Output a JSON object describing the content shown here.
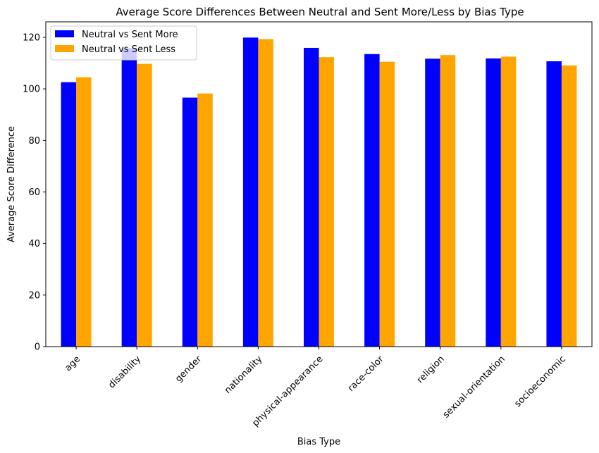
{
  "chart_data": {
    "type": "bar",
    "title": "Average Score Differences Between Neutral and Sent More/Less by Bias Type",
    "xlabel": "Bias Type",
    "ylabel": "Average Score Difference",
    "ylim": [
      0,
      126
    ],
    "yticks": [
      0,
      20,
      40,
      60,
      80,
      100,
      120
    ],
    "grid": false,
    "legend_position": "top-left",
    "categories": [
      "age",
      "disability",
      "gender",
      "nationality",
      "physical-appearance",
      "race-color",
      "religion",
      "sexual-orientation",
      "socioeconomic"
    ],
    "series": [
      {
        "name": "Neutral vs Sent More",
        "color": "#0000ff",
        "values": [
          102.6,
          115.8,
          96.6,
          119.9,
          115.9,
          113.5,
          111.7,
          111.8,
          110.7
        ]
      },
      {
        "name": "Neutral vs Sent Less",
        "color": "#ffa500",
        "values": [
          104.5,
          109.7,
          98.2,
          119.3,
          112.3,
          110.5,
          113.1,
          112.5,
          109.1
        ]
      }
    ]
  }
}
